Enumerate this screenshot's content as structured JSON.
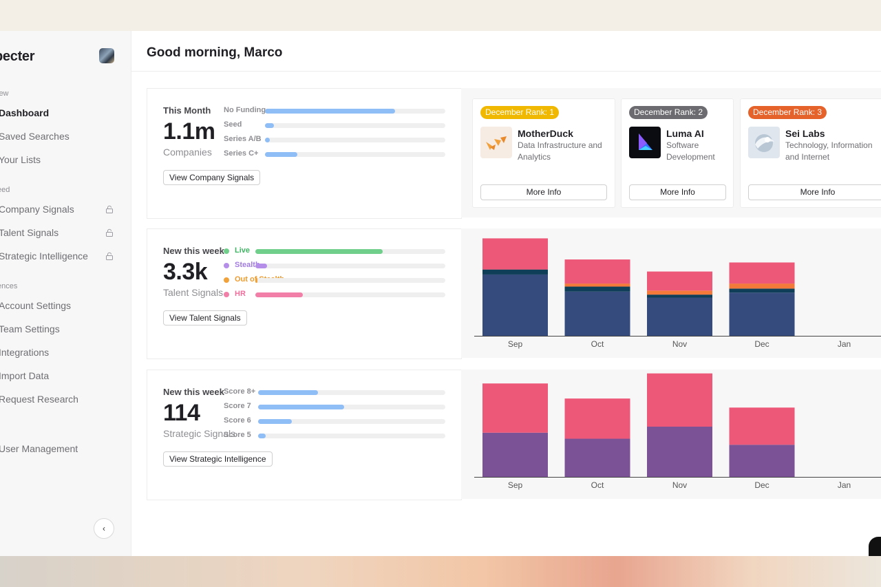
{
  "sidebar": {
    "brand": "pecter",
    "sections": [
      "iew",
      "eed",
      "ences"
    ],
    "items": [
      {
        "label": "Dashboard",
        "active": true
      },
      {
        "label": "Saved Searches"
      },
      {
        "label": "Your Lists"
      },
      {
        "label": "Company Signals",
        "locked": true
      },
      {
        "label": "Talent Signals",
        "locked": true
      },
      {
        "label": "Strategic Intelligence",
        "locked": true
      },
      {
        "label": "Account Settings"
      },
      {
        "label": "Team Settings"
      },
      {
        "label": "Integrations"
      },
      {
        "label": "Import Data"
      },
      {
        "label": "Request Research"
      },
      {
        "label": "User Management"
      }
    ],
    "collapse_icon": "‹"
  },
  "header": {
    "greeting": "Good morning, Marco"
  },
  "company_panel": {
    "caption": "This Month",
    "value": "1.1m",
    "unit": "Companies",
    "button": "View Company Signals",
    "bars": [
      {
        "label": "No Funding",
        "fraction": 0.72,
        "color": "#8fbdf5"
      },
      {
        "label": "Seed",
        "fraction": 0.05,
        "color": "#8fbdf5"
      },
      {
        "label": "Series A/B",
        "fraction": 0.025,
        "color": "#8fbdf5"
      },
      {
        "label": "Series C+",
        "fraction": 0.18,
        "color": "#8fbdf5"
      }
    ]
  },
  "rank_cards": [
    {
      "badge": "December Rank: 1",
      "badge_color": "#f0b800",
      "name": "MotherDuck",
      "desc": "Data Infrastructure and Analytics",
      "button": "More Info"
    },
    {
      "badge": "December Rank: 2",
      "badge_color": "#6b6b70",
      "name": "Luma AI",
      "desc": "Software Development",
      "button": "More Info"
    },
    {
      "badge": "December Rank: 3",
      "badge_color": "#e5622a",
      "name": "Sei Labs",
      "desc": "Technology, Information and Internet",
      "button": "More Info"
    }
  ],
  "talent_panel": {
    "caption": "New this week",
    "value": "3.3k",
    "unit": "Talent Signals",
    "button": "View Talent Signals",
    "bars": [
      {
        "label": "Live",
        "fraction": 0.67,
        "color": "#6fcf8b",
        "label_color": "#3fb463"
      },
      {
        "label": "Stealth",
        "fraction": 0.06,
        "color": "#b48ee8",
        "label_color": "#a27be0"
      },
      {
        "label": "Out of Stealth",
        "fraction": 0.01,
        "color": "#f2a23a",
        "label_color": "#ef9a2c"
      },
      {
        "label": "HR",
        "fraction": 0.25,
        "color": "#f27fa8",
        "label_color": "#ee6f9c"
      }
    ]
  },
  "strategic_panel": {
    "caption": "New this week",
    "value": "114",
    "unit": "Strategic Signals",
    "button": "View Strategic Intelligence",
    "bars": [
      {
        "label": "Score 8+",
        "fraction": 0.32,
        "color": "#8fbdf5"
      },
      {
        "label": "Score 7",
        "fraction": 0.46,
        "color": "#8fbdf5"
      },
      {
        "label": "Score 6",
        "fraction": 0.18,
        "color": "#8fbdf5"
      },
      {
        "label": "Score 5",
        "fraction": 0.04,
        "color": "#8fbdf5"
      }
    ]
  },
  "chart_data": [
    {
      "type": "bar",
      "stacked": true,
      "categories": [
        "Sep",
        "Oct",
        "Nov",
        "Dec",
        "Jan"
      ],
      "ylim": [
        0,
        100
      ],
      "grid": false,
      "series": [
        {
          "values": [
            61,
            44,
            38,
            43,
            0
          ],
          "color": "#354b7e"
        },
        {
          "values": [
            5,
            5,
            3,
            4,
            0
          ],
          "color": "#0f3f58"
        },
        {
          "values": [
            0,
            3,
            4,
            5,
            0
          ],
          "color": "#f2793a"
        },
        {
          "values": [
            31,
            24,
            19,
            21,
            0
          ],
          "color": "#ee5878"
        }
      ]
    },
    {
      "type": "bar",
      "stacked": true,
      "categories": [
        "Sep",
        "Oct",
        "Nov",
        "Dec",
        "Jan"
      ],
      "ylim": [
        0,
        100
      ],
      "grid": false,
      "series": [
        {
          "values": [
            44,
            38,
            50,
            32,
            0
          ],
          "color": "#7b5296"
        },
        {
          "values": [
            49,
            40,
            53,
            37,
            0
          ],
          "color": "#ee5878"
        }
      ]
    }
  ]
}
